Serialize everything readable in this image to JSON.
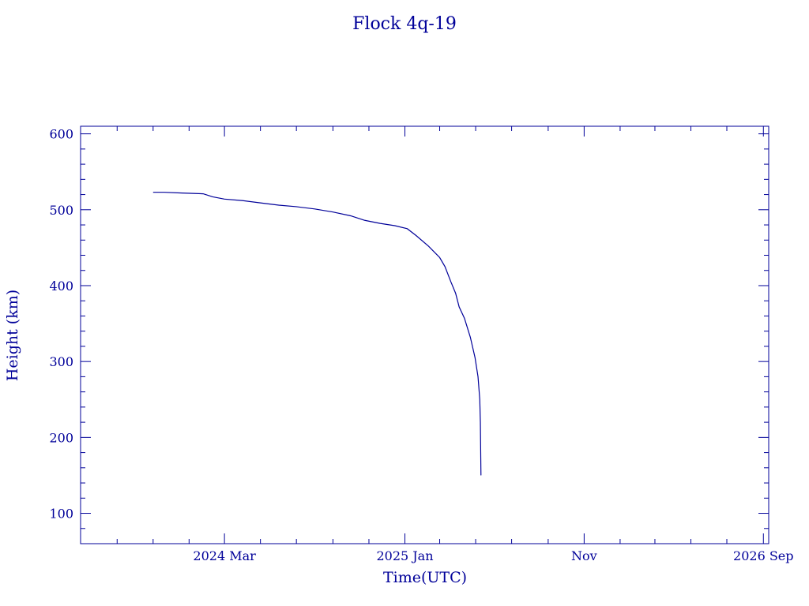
{
  "colors": {
    "ink": "#000099",
    "background": "#ffffff"
  },
  "chart_data": {
    "type": "line",
    "title": "Flock 4q-19",
    "xlabel": "Time(UTC)",
    "ylabel": "Height (km)",
    "xlim": [
      "2023-07-01",
      "2026-09-10"
    ],
    "ylim": [
      60,
      610
    ],
    "grid": false,
    "x_ticks": [
      {
        "date": "2024-03-01",
        "label": "2024 Mar"
      },
      {
        "date": "2025-01-01",
        "label": "2025 Jan"
      },
      {
        "date": "2025-11-01",
        "label": "Nov"
      },
      {
        "date": "2026-09-01",
        "label": "2026 Sep"
      }
    ],
    "y_ticks": [
      {
        "value": 100,
        "label": "100"
      },
      {
        "value": 200,
        "label": "200"
      },
      {
        "value": 300,
        "label": "300"
      },
      {
        "value": 400,
        "label": "400"
      },
      {
        "value": 500,
        "label": "500"
      },
      {
        "value": 600,
        "label": "600"
      }
    ],
    "series": [
      {
        "points": [
          [
            "2023-11-01",
            523
          ],
          [
            "2023-11-20",
            523
          ],
          [
            "2023-12-20",
            522
          ],
          [
            "2024-01-25",
            521
          ],
          [
            "2024-02-10",
            517
          ],
          [
            "2024-03-01",
            514
          ],
          [
            "2024-04-01",
            512
          ],
          [
            "2024-05-01",
            509
          ],
          [
            "2024-06-01",
            506
          ],
          [
            "2024-07-01",
            504
          ],
          [
            "2024-08-01",
            501
          ],
          [
            "2024-09-01",
            497
          ],
          [
            "2024-10-01",
            492
          ],
          [
            "2024-10-25",
            486
          ],
          [
            "2024-11-20",
            482
          ],
          [
            "2024-12-15",
            479
          ],
          [
            "2025-01-05",
            475
          ],
          [
            "2025-01-20",
            466
          ],
          [
            "2025-02-10",
            452
          ],
          [
            "2025-03-01",
            437
          ],
          [
            "2025-03-10",
            425
          ],
          [
            "2025-03-20",
            405
          ],
          [
            "2025-03-28",
            390
          ],
          [
            "2025-04-03",
            372
          ],
          [
            "2025-04-12",
            357
          ],
          [
            "2025-04-22",
            332
          ],
          [
            "2025-04-30",
            305
          ],
          [
            "2025-05-05",
            280
          ],
          [
            "2025-05-08",
            250
          ],
          [
            "2025-05-09",
            220
          ],
          [
            "2025-05-10",
            150
          ]
        ]
      }
    ]
  }
}
